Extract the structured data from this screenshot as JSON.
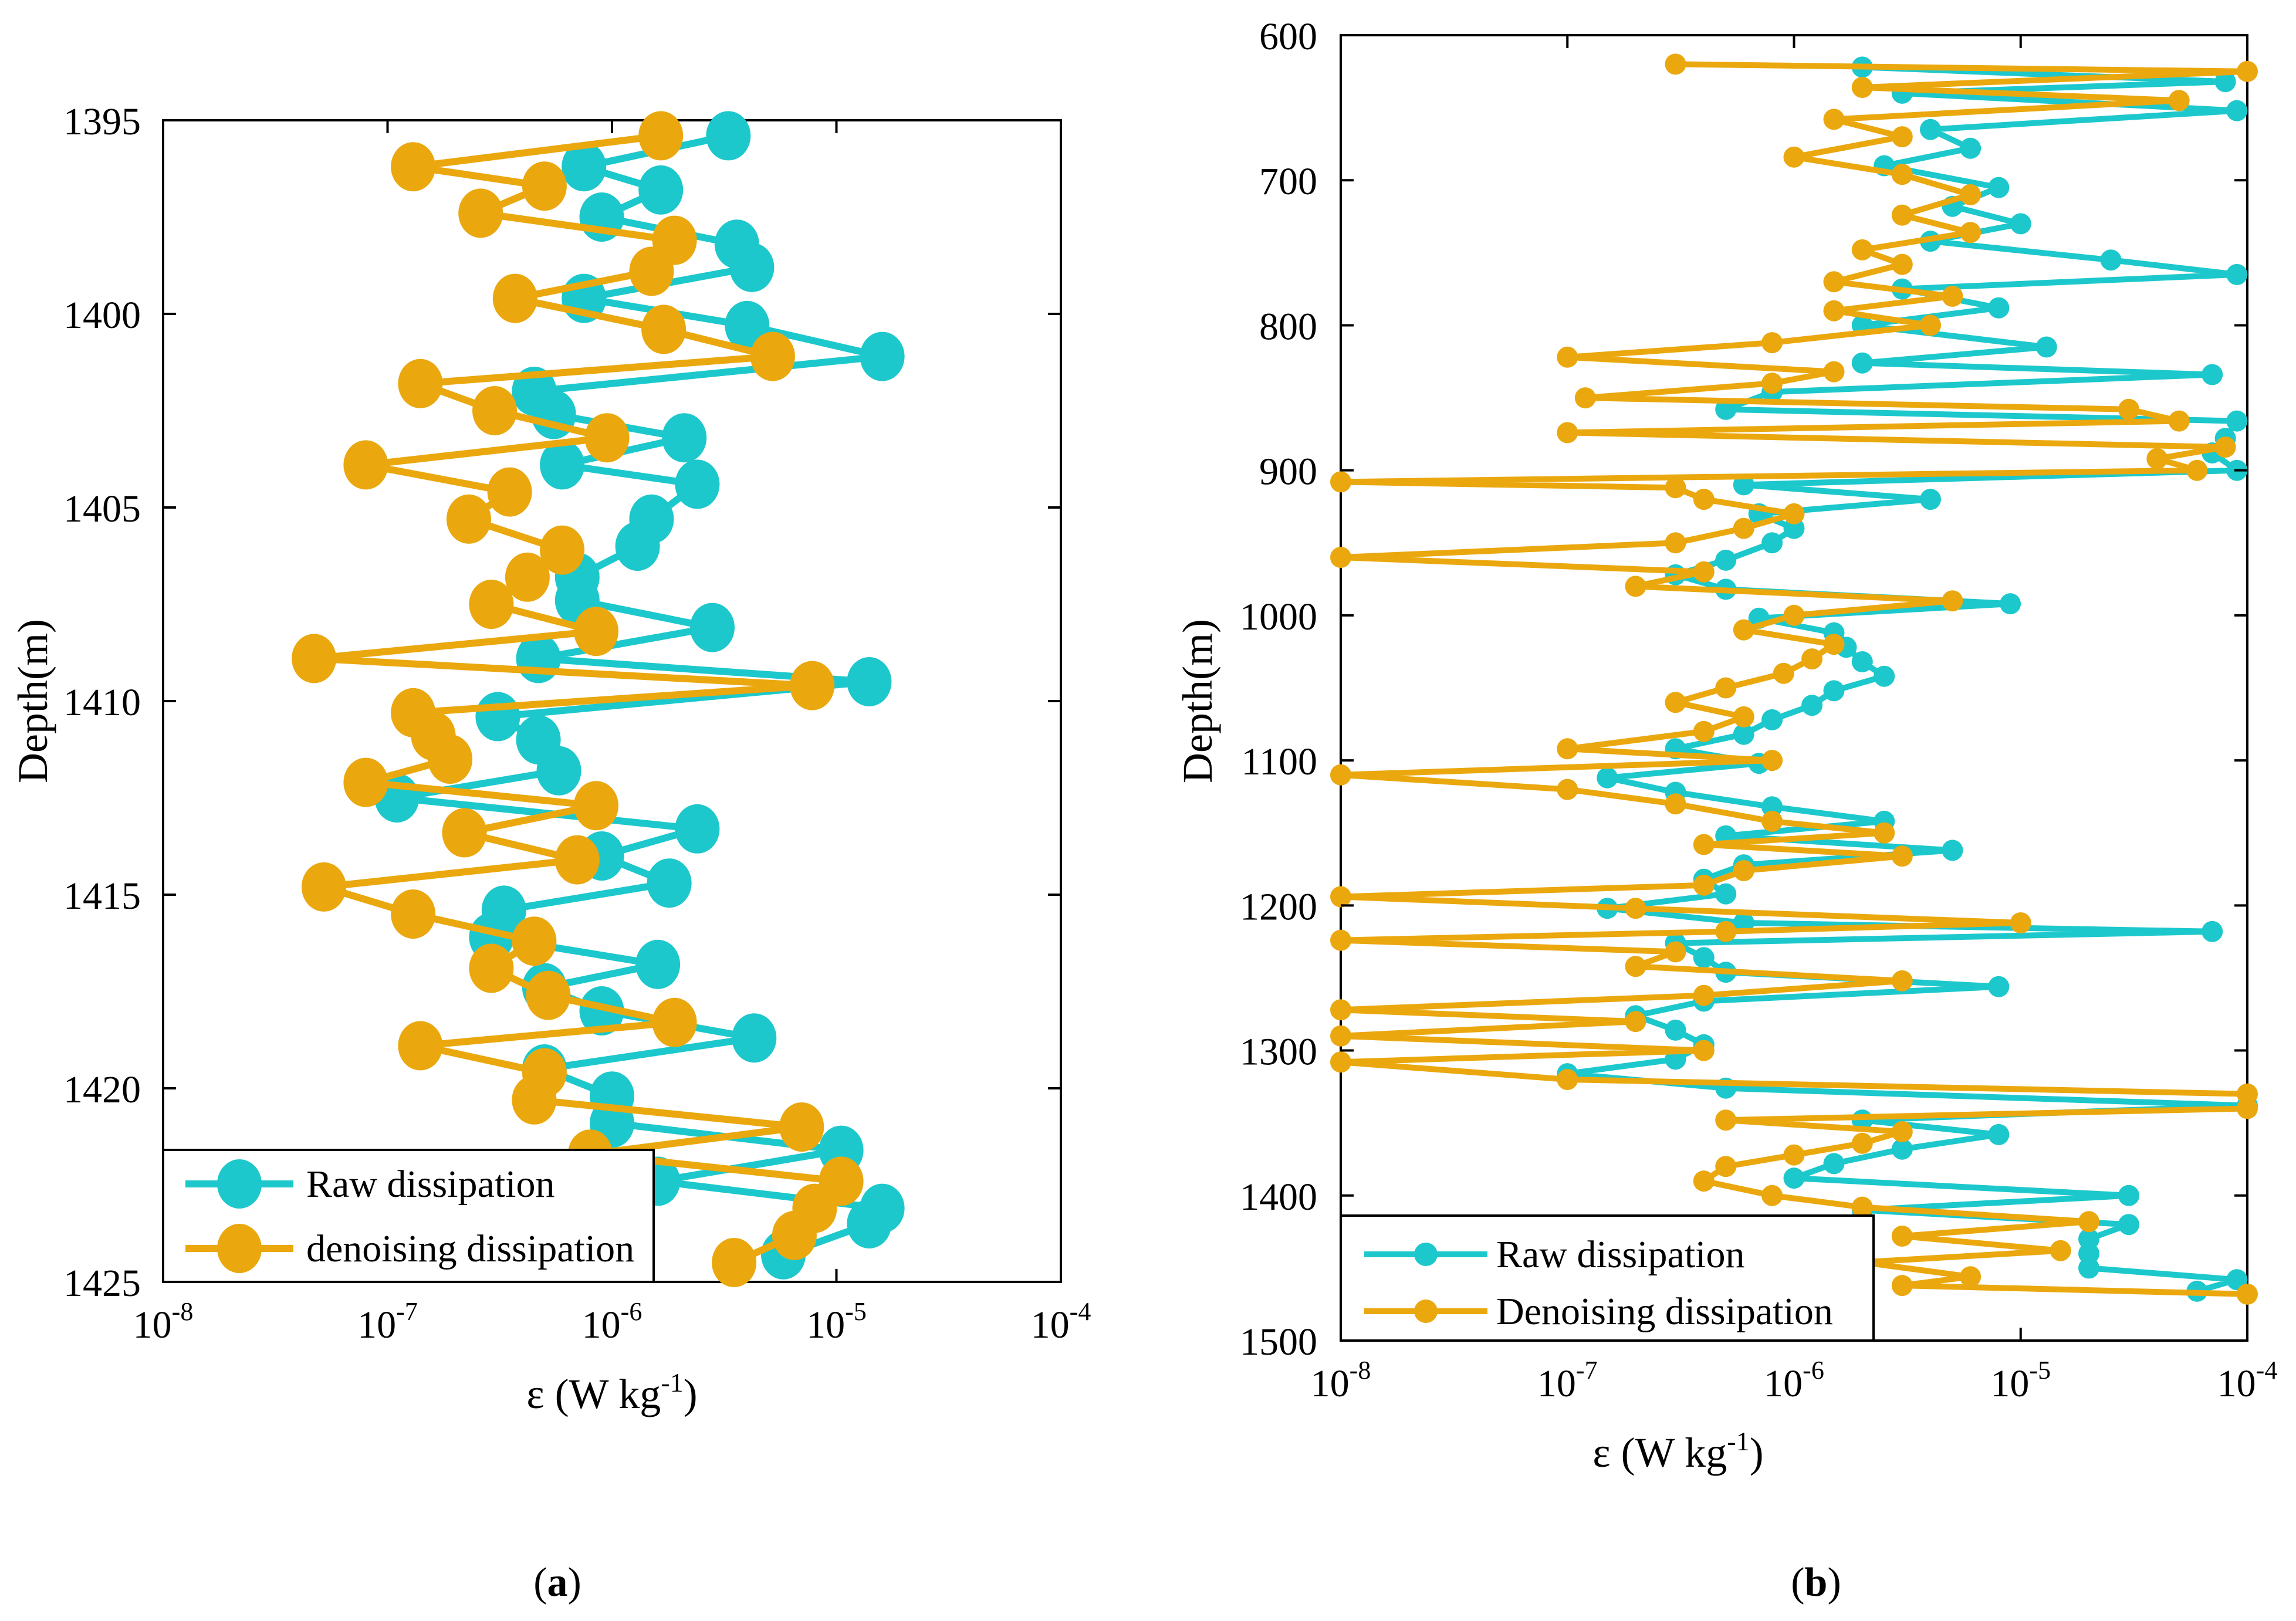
{
  "colors": {
    "raw": "#1CC8CC",
    "denoised": "#EAA80E",
    "axis": "#000000",
    "background": "#ffffff"
  },
  "chart_data": [
    {
      "panel": "a",
      "caption_open": "(",
      "caption_letter": "a",
      "caption_close": ")",
      "type": "line",
      "xscale": "log",
      "xlim_exp": [
        -8,
        -4
      ],
      "ylim": [
        1395,
        1425
      ],
      "y_inverted": true,
      "xlabel": {
        "prefix": "ε (W kg",
        "sup": "-1",
        "suffix": ")"
      },
      "ylabel": "Depth(m)",
      "x_ticks": [
        {
          "base": "10",
          "exp": "-8"
        },
        {
          "base": "10",
          "exp": "-7"
        },
        {
          "base": "10",
          "exp": "-6"
        },
        {
          "base": "10",
          "exp": "-5"
        },
        {
          "base": "10",
          "exp": "-4"
        }
      ],
      "y_ticks": [
        "1395",
        "1400",
        "1405",
        "1410",
        "1415",
        "1420",
        "1425"
      ],
      "legend": {
        "placement": "bottom-left",
        "entries": [
          "Raw dissipation",
          "denoising dissipation"
        ]
      },
      "series": [
        {
          "name": "Raw dissipation",
          "marker": "large-circle",
          "depth": [
            1395.4,
            1396.2,
            1396.8,
            1397.5,
            1398.2,
            1398.8,
            1399.6,
            1400.3,
            1401.1,
            1402.0,
            1402.6,
            1403.2,
            1403.9,
            1404.4,
            1405.3,
            1406.0,
            1406.8,
            1407.4,
            1408.1,
            1408.9,
            1409.5,
            1410.4,
            1411.0,
            1411.8,
            1412.5,
            1413.3,
            1414.0,
            1414.7,
            1415.4,
            1416.1,
            1416.8,
            1417.4,
            1418.0,
            1418.7,
            1419.5,
            1420.2,
            1420.9,
            1421.6,
            1422.4,
            1423.1,
            1423.5,
            1424.3
          ],
          "values": [
            3.3e-06,
            7.5e-07,
            1.65e-06,
            9e-07,
            3.6e-06,
            4.2e-06,
            7.5e-07,
            4e-06,
            1.6e-05,
            4.5e-07,
            5.5e-07,
            2.1e-06,
            6e-07,
            2.4e-06,
            1.5e-06,
            1.3e-06,
            7e-07,
            7e-07,
            2.8e-06,
            4.7e-07,
            1.4e-05,
            3.1e-07,
            4.7e-07,
            5.8e-07,
            1.1e-07,
            2.4e-06,
            9e-07,
            1.8e-06,
            3.3e-07,
            2.9e-07,
            1.6e-06,
            5e-07,
            9e-07,
            4.3e-06,
            5e-07,
            1e-06,
            1e-06,
            1.05e-05,
            1.6e-06,
            1.6e-05,
            1.4e-05,
            5.8e-06
          ]
        },
        {
          "name": "denoising dissipation",
          "marker": "large-circle",
          "depth": [
            1395.4,
            1396.2,
            1396.7,
            1397.4,
            1398.1,
            1398.9,
            1399.6,
            1400.4,
            1401.1,
            1401.8,
            1402.5,
            1403.2,
            1403.9,
            1404.6,
            1405.3,
            1406.1,
            1406.8,
            1407.5,
            1408.2,
            1408.9,
            1409.6,
            1410.3,
            1410.9,
            1411.5,
            1412.1,
            1412.7,
            1413.4,
            1414.1,
            1414.8,
            1415.5,
            1416.2,
            1416.9,
            1417.6,
            1418.3,
            1418.9,
            1419.6,
            1420.3,
            1421.0,
            1421.7,
            1422.4,
            1423.1,
            1423.8,
            1424.5
          ],
          "values": [
            1.65e-06,
            1.3e-07,
            5e-07,
            2.6e-07,
            1.9e-06,
            1.5e-06,
            3.7e-07,
            1.7e-06,
            5.2e-06,
            1.4e-07,
            3e-07,
            9.5e-07,
            8e-08,
            3.5e-07,
            2.3e-07,
            6e-07,
            4.2e-07,
            2.9e-07,
            8.5e-07,
            4.7e-08,
            7.8e-06,
            1.3e-07,
            1.6e-07,
            1.9e-07,
            8e-08,
            8.5e-07,
            2.2e-07,
            7e-07,
            5.2e-08,
            1.3e-07,
            4.5e-07,
            2.9e-07,
            5.2e-07,
            1.9e-06,
            1.4e-07,
            5e-07,
            4.5e-07,
            7e-06,
            8e-07,
            1.05e-05,
            8e-06,
            6.5e-06,
            3.5e-06
          ]
        }
      ]
    },
    {
      "panel": "b",
      "caption_open": "(",
      "caption_letter": "b",
      "caption_close": ")",
      "type": "line",
      "xscale": "log",
      "xlim_exp": [
        -8,
        -4
      ],
      "ylim": [
        600,
        1500
      ],
      "y_inverted": true,
      "xlabel": {
        "prefix": "ε (W kg",
        "sup": "-1",
        "suffix": ")"
      },
      "ylabel": "Depth(m)",
      "x_ticks": [
        {
          "base": "10",
          "exp": "-8"
        },
        {
          "base": "10",
          "exp": "-7"
        },
        {
          "base": "10",
          "exp": "-6"
        },
        {
          "base": "10",
          "exp": "-5"
        },
        {
          "base": "10",
          "exp": "-4"
        }
      ],
      "y_ticks": [
        "600",
        "700",
        "800",
        "900",
        "1000",
        "1100",
        "1200",
        "1300",
        "1400",
        "1500"
      ],
      "legend": {
        "placement": "bottom-left",
        "entries": [
          "Raw dissipation",
          "Denoising dissipation"
        ]
      },
      "series": [
        {
          "name": "Raw dissipation",
          "marker": "small-circle",
          "depth": [
            622,
            632,
            640,
            652,
            665,
            678,
            690,
            705,
            718,
            730,
            742,
            755,
            765,
            775,
            788,
            800,
            815,
            826,
            834,
            846,
            858,
            866,
            878,
            888,
            900,
            910,
            920,
            930,
            940,
            950,
            962,
            972,
            982,
            992,
            1002,
            1012,
            1022,
            1032,
            1042,
            1052,
            1062,
            1072,
            1082,
            1092,
            1102,
            1112,
            1122,
            1132,
            1142,
            1152,
            1162,
            1172,
            1182,
            1192,
            1202,
            1212,
            1218,
            1226,
            1236,
            1246,
            1256,
            1266,
            1276,
            1286,
            1296,
            1306,
            1316,
            1326,
            1338,
            1348,
            1358,
            1368,
            1378,
            1388,
            1400,
            1410,
            1420,
            1430,
            1440,
            1450,
            1458,
            1466
          ],
          "values": [
            2e-06,
            8e-05,
            3e-06,
            9e-05,
            4e-06,
            6e-06,
            2.5e-06,
            8e-06,
            5e-06,
            1e-05,
            4e-06,
            2.5e-05,
            9e-05,
            3e-06,
            8e-06,
            2e-06,
            1.3e-05,
            2e-06,
            7e-05,
            8e-07,
            5e-07,
            9e-05,
            8e-05,
            7e-05,
            9e-05,
            6e-07,
            4e-06,
            7e-07,
            1e-06,
            8e-07,
            5e-07,
            3e-07,
            5e-07,
            9e-06,
            7e-07,
            1.5e-06,
            1.7e-06,
            2e-06,
            2.5e-06,
            1.5e-06,
            1.2e-06,
            8e-07,
            6e-07,
            3e-07,
            7e-07,
            1.5e-07,
            3e-07,
            8e-07,
            2.5e-06,
            5e-07,
            5e-06,
            6e-07,
            4e-07,
            5e-07,
            1.5e-07,
            6e-07,
            7e-05,
            3e-07,
            4e-07,
            5e-07,
            8e-06,
            4e-07,
            2e-07,
            3e-07,
            4e-07,
            3e-07,
            1e-07,
            5e-07,
            0.0001,
            2e-06,
            8e-06,
            3e-06,
            1.5e-06,
            1e-06,
            3e-05,
            2e-06,
            3e-05,
            2e-05,
            2e-05,
            2e-05,
            9e-05,
            6e-05
          ]
        },
        {
          "name": "Denoising dissipation",
          "marker": "small-circle",
          "depth": [
            620,
            625,
            636,
            645,
            658,
            670,
            684,
            696,
            710,
            724,
            736,
            748,
            758,
            770,
            780,
            790,
            800,
            812,
            822,
            832,
            840,
            850,
            858,
            866,
            874,
            884,
            892,
            900,
            908,
            912,
            920,
            930,
            940,
            950,
            960,
            970,
            980,
            990,
            1000,
            1010,
            1020,
            1030,
            1040,
            1050,
            1060,
            1070,
            1080,
            1092,
            1100,
            1110,
            1120,
            1130,
            1142,
            1150,
            1158,
            1166,
            1176,
            1186,
            1194,
            1202,
            1212,
            1218,
            1224,
            1232,
            1242,
            1252,
            1262,
            1272,
            1280,
            1290,
            1300,
            1308,
            1320,
            1330,
            1340,
            1348,
            1356,
            1364,
            1372,
            1380,
            1390,
            1400,
            1408,
            1418,
            1428,
            1438,
            1446,
            1456,
            1462,
            1468
          ],
          "values": [
            3e-07,
            0.0001,
            2e-06,
            5e-05,
            1.5e-06,
            3e-06,
            1e-06,
            3e-06,
            6e-06,
            3e-06,
            6e-06,
            2e-06,
            3e-06,
            1.5e-06,
            5e-06,
            1.5e-06,
            4e-06,
            8e-07,
            1e-07,
            1.5e-06,
            8e-07,
            1.2e-07,
            3e-05,
            5e-05,
            1e-07,
            8e-05,
            4e-05,
            6e-05,
            1e-08,
            3e-07,
            4e-07,
            1e-06,
            6e-07,
            3e-07,
            1e-08,
            4e-07,
            2e-07,
            5e-06,
            1e-06,
            6e-07,
            1.5e-06,
            1.2e-06,
            9e-07,
            5e-07,
            3e-07,
            6e-07,
            4e-07,
            1e-07,
            8e-07,
            1e-08,
            1e-07,
            3e-07,
            8e-07,
            2.5e-06,
            4e-07,
            3e-06,
            6e-07,
            4e-07,
            1e-08,
            2e-07,
            1e-05,
            5e-07,
            1e-08,
            3e-07,
            2e-07,
            3e-06,
            4e-07,
            1e-08,
            2e-07,
            1e-08,
            4e-07,
            1e-08,
            1e-07,
            0.0001,
            0.0001,
            5e-07,
            3e-06,
            2e-06,
            1e-06,
            5e-07,
            4e-07,
            8e-07,
            2e-06,
            2e-05,
            3e-06,
            1.5e-05,
            2e-06,
            6e-06,
            3e-06,
            0.0001
          ]
        }
      ]
    }
  ]
}
